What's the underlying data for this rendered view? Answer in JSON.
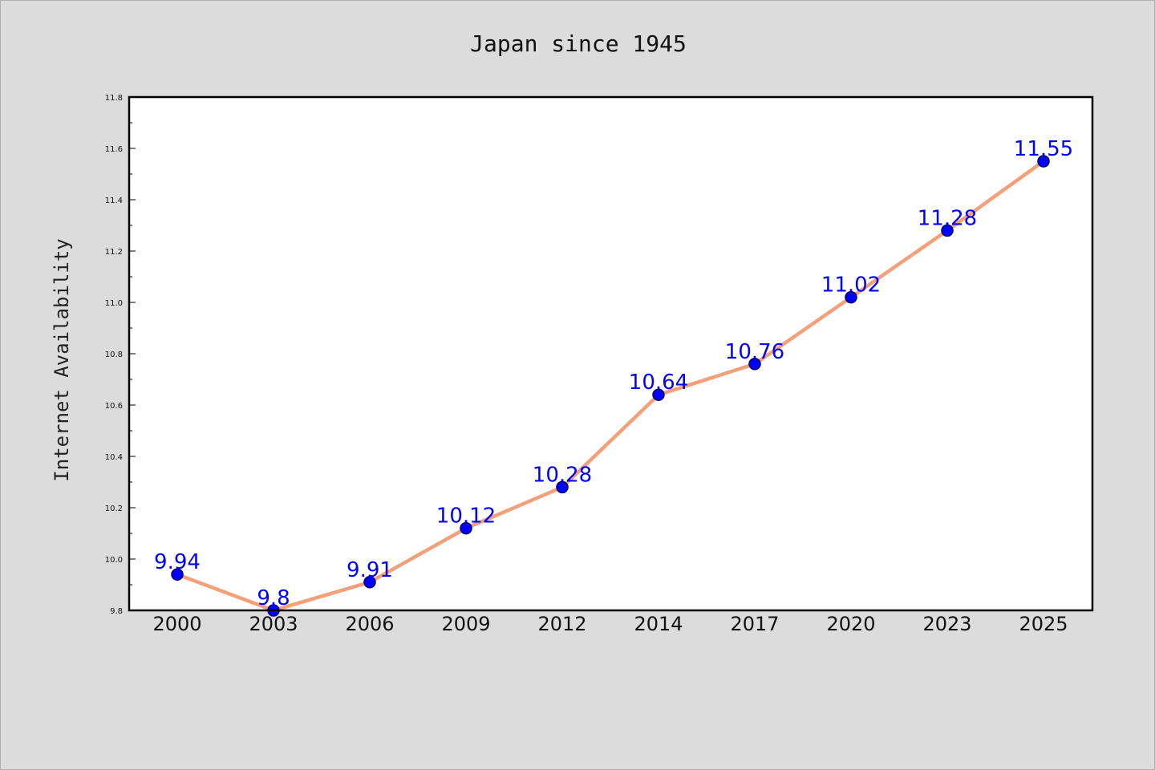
{
  "chart_data": {
    "type": "line",
    "title": "Japan since 1945",
    "xlabel": "",
    "ylabel": "Internet Availability",
    "categories": [
      "2000",
      "2003",
      "2006",
      "2009",
      "2012",
      "2014",
      "2017",
      "2020",
      "2023",
      "2025"
    ],
    "series": [
      {
        "values": [
          9.94,
          9.8,
          9.91,
          10.12,
          10.28,
          10.64,
          10.76,
          11.02,
          11.28,
          11.55
        ]
      }
    ],
    "data_labels": [
      "9.94",
      "9.8",
      "9.91",
      "10.12",
      "10.28",
      "10.64",
      "10.76",
      "11.02",
      "11.28",
      "11.55"
    ],
    "ylim": [
      9.8,
      11.8
    ],
    "yticks": [
      "9.8",
      "10.0",
      "10.2",
      "10.4",
      "10.6",
      "10.8",
      "11.0",
      "11.2",
      "11.4",
      "11.6",
      "11.8"
    ],
    "grid": false,
    "legend": "none",
    "colors": {
      "line": "#f4a07a",
      "marker": "#0000ff",
      "marker_edge": "#000066",
      "data_label": "#0000ff",
      "plot_background": "#ffffff",
      "figure_background": "#dcdcdc"
    }
  }
}
